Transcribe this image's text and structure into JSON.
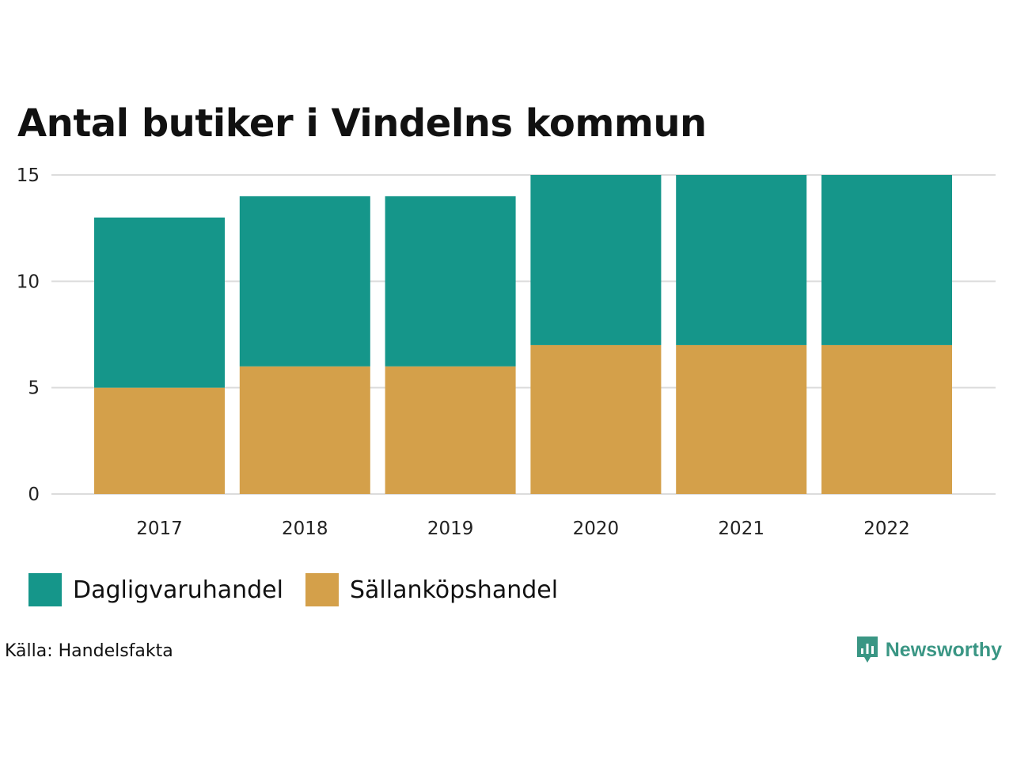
{
  "chart_data": {
    "type": "bar",
    "stacked": true,
    "title": "Antal butiker i Vindelns kommun",
    "categories": [
      "2017",
      "2018",
      "2019",
      "2020",
      "2021",
      "2022"
    ],
    "series": [
      {
        "name": "Sällanköpshandel",
        "color": "#d4a04a",
        "values": [
          5,
          6,
          6,
          7,
          7,
          7
        ]
      },
      {
        "name": "Dagligvaruhandel",
        "color": "#15968a",
        "values": [
          8,
          8,
          8,
          8,
          8,
          8
        ]
      }
    ],
    "yticks": [
      "0",
      "5",
      "10",
      "15"
    ],
    "ylim": [
      0,
      15
    ],
    "grid": true,
    "legend_position": "bottom-left"
  },
  "legend": [
    {
      "label": "Dagligvaruhandel",
      "color": "#15968a"
    },
    {
      "label": "Sällanköpshandel",
      "color": "#d4a04a"
    }
  ],
  "source": "Källa: Handelsfakta",
  "brand": {
    "name": "Newsworthy",
    "color": "#3a9684"
  }
}
